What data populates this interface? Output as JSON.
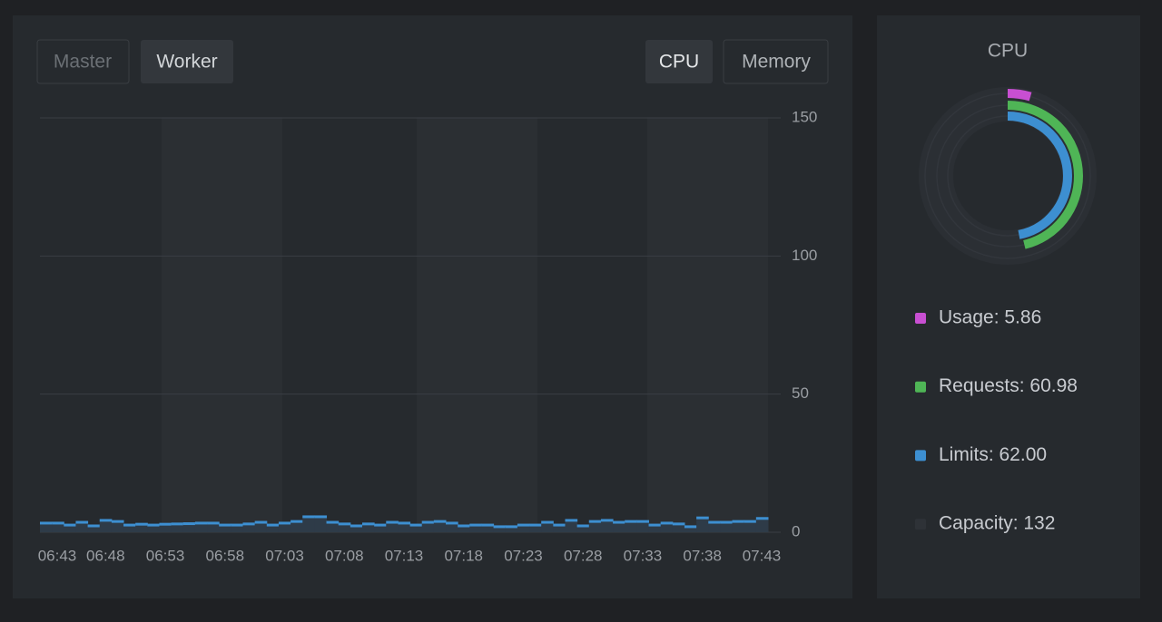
{
  "tabs": {
    "node_type": [
      "Master",
      "Worker"
    ],
    "resource": [
      "CPU",
      "Memory"
    ]
  },
  "chart_data": [
    {
      "type": "steparea",
      "categories": [
        "06:43",
        null,
        null,
        null,
        null,
        "06:48",
        null,
        null,
        null,
        null,
        "06:53",
        null,
        null,
        null,
        null,
        "06:58",
        null,
        null,
        null,
        null,
        "07:03",
        null,
        null,
        null,
        null,
        "07:08",
        null,
        null,
        null,
        null,
        "07:13",
        null,
        null,
        null,
        null,
        "07:18",
        null,
        null,
        null,
        null,
        "07:23",
        null,
        null,
        null,
        null,
        "07:28",
        null,
        null,
        null,
        null,
        "07:33",
        null,
        null,
        null,
        null,
        "07:38",
        null,
        null,
        null,
        null,
        "07:43"
      ],
      "values": [
        3.3,
        3.3,
        2.6,
        3.6,
        2.3,
        4.3,
        3.9,
        2.6,
        2.9,
        2.6,
        2.9,
        3.0,
        3.1,
        3.3,
        3.3,
        2.6,
        2.6,
        3.0,
        3.6,
        2.6,
        3.3,
        3.9,
        5.6,
        5.6,
        3.6,
        3.0,
        2.3,
        3.0,
        2.6,
        3.6,
        3.3,
        2.6,
        3.6,
        3.9,
        3.3,
        2.3,
        2.6,
        2.6,
        2.0,
        2.0,
        2.6,
        2.6,
        3.6,
        2.6,
        4.3,
        2.3,
        3.9,
        4.3,
        3.6,
        3.9,
        3.9,
        2.6,
        3.3,
        3.0,
        2.0,
        5.2,
        3.6,
        3.6,
        3.9,
        3.9,
        5.0
      ],
      "color": "#3d8fd1",
      "ylim": [
        0,
        150
      ],
      "yticks": [
        0,
        50,
        100,
        150
      ],
      "grid": true
    },
    {
      "type": "radial",
      "title": "CPU",
      "categories": [
        "Usage: 5.86",
        "Requests: 60.98",
        "Limits: 62.00",
        "Capacity: 132"
      ],
      "values": [
        5.86,
        60.98,
        62.0,
        132
      ],
      "colors": [
        "#c84fd2",
        "#4fb556",
        "#3d8fd1",
        "#2e3237"
      ]
    }
  ]
}
